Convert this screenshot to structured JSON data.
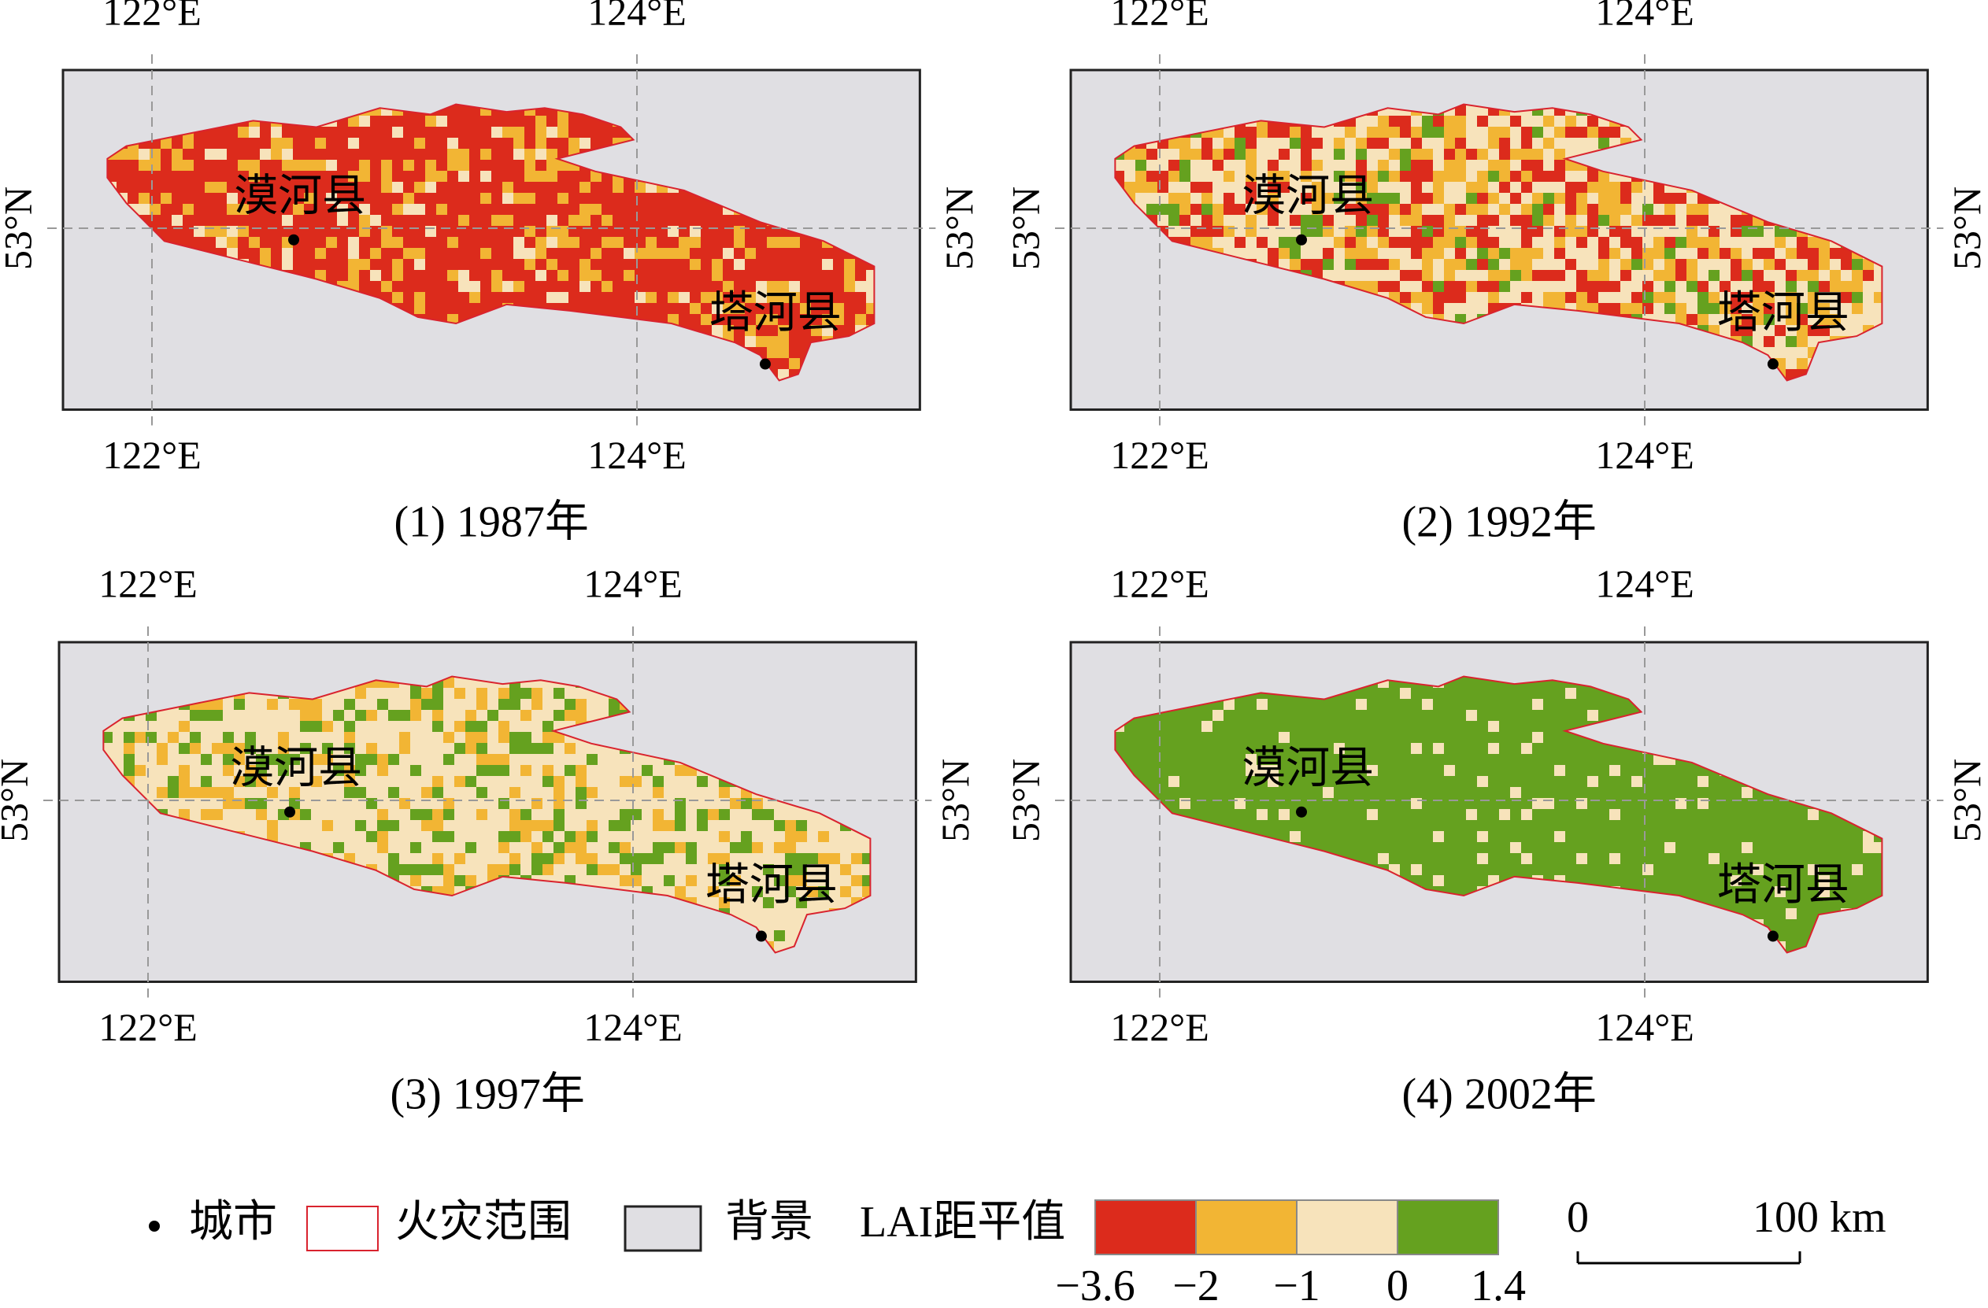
{
  "panels": [
    {
      "title": "(1) 1987年",
      "mix": [
        "#dc2b1c",
        "#dc2b1c",
        "#dc2b1c",
        "#dc2b1c",
        "#dc2b1c",
        "#dc2b1c",
        "#dc2b1c",
        "#f2b534",
        "#f2b534",
        "#f7e3bb"
      ]
    },
    {
      "title": "(2) 1992年",
      "mix": [
        "#dc2b1c",
        "#dc2b1c",
        "#dc2b1c",
        "#f2b534",
        "#f2b534",
        "#f2b534",
        "#f7e3bb",
        "#f7e3bb",
        "#f7e3bb",
        "#f7e3bb",
        "#65a11f"
      ]
    },
    {
      "title": "(3) 1997年",
      "mix": [
        "#f7e3bb",
        "#f7e3bb",
        "#f7e3bb",
        "#f7e3bb",
        "#f7e3bb",
        "#f7e3bb",
        "#f2b534",
        "#f2b534",
        "#65a11f",
        "#65a11f"
      ]
    },
    {
      "title": "(4) 2002年",
      "mix": [
        "#65a11f",
        "#65a11f",
        "#65a11f",
        "#65a11f",
        "#65a11f",
        "#65a11f",
        "#65a11f",
        "#65a11f",
        "#65a11f",
        "#f7e3bb"
      ]
    }
  ],
  "axes": {
    "lon_left": "122°E",
    "lon_right": "124°E",
    "lat": "53°N"
  },
  "cities": [
    "漠河县",
    "塔河县"
  ],
  "legend": {
    "city": "城市",
    "fire_extent": "火灾范围",
    "background": "背景",
    "lai_title": "LAI距平值",
    "colors": [
      "#dc2b1c",
      "#f2b534",
      "#f7e3bb",
      "#65a11f"
    ],
    "ticks": [
      {
        "value": -3.6,
        "label": "−3.6"
      },
      {
        "value": -2,
        "label": "−2"
      },
      {
        "value": -1,
        "label": "−1"
      },
      0,
      1.4
    ]
  },
  "scale_bar": {
    "ticks": [
      0,
      {
        "value": 100,
        "label": "100 km"
      }
    ]
  }
}
